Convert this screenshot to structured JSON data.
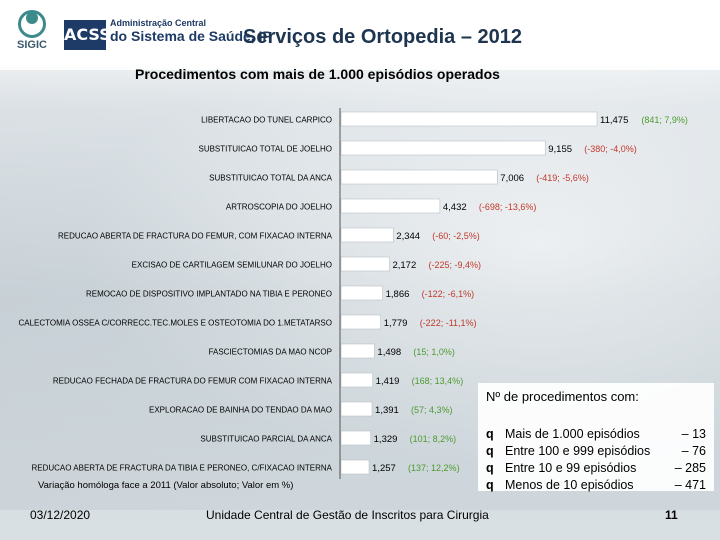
{
  "header": {
    "sigic_text": "SIGIC",
    "acss_text": "ACSS",
    "acss_line1": "Administração Central",
    "acss_line2": "do Sistema de Saúde, IP",
    "title": "Serviços de Ortopedia – 2012"
  },
  "chart_data": {
    "type": "bar",
    "orientation": "horizontal",
    "title": "Procedimentos com mais de 1.000 episódios operados",
    "categories": [
      "LIBERTACAO DO TUNEL CARPICO",
      "SUBSTITUICAO TOTAL DE JOELHO",
      "SUBSTITUICAO TOTAL DA ANCA",
      "ARTROSCOPIA DO JOELHO",
      "REDUCAO ABERTA DE FRACTURA DO FEMUR, COM FIXACAO INTERNA",
      "EXCISAO DE CARTILAGEM SEMILUNAR DO JOELHO",
      "REMOCAO DE DISPOSITIVO IMPLANTADO NA TIBIA E PERONEO",
      "CALECTOMIA OSSEA C/CORRECC.TEC.MOLES E OSTEOTOMIA DO 1.METATARSO",
      "FASCIECTOMIAS DA MAO NCOP",
      "REDUCAO FECHADA DE FRACTURA DO FEMUR COM FIXACAO INTERNA",
      "EXPLORACAO DE BAINHA DO TENDAO DA MAO",
      "SUBSTITUICAO PARCIAL DA ANCA",
      "REDUCAO ABERTA DE FRACTURA DA TIBIA E PERONEO, C/FIXACAO INTERNA"
    ],
    "values": [
      11475,
      9155,
      7006,
      4432,
      2344,
      2172,
      1866,
      1779,
      1498,
      1419,
      1391,
      1329,
      1257
    ],
    "value_labels": [
      "11,475",
      "9,155",
      "7,006",
      "4,432",
      "2,344",
      "2,172",
      "1,866",
      "1,779",
      "1,498",
      "1,419",
      "1,391",
      "1,329",
      "1,257"
    ],
    "variation_labels": [
      "(841; 7,9%)",
      "(-380; -4,0%)",
      "(-419; -5,6%)",
      "(-698; -13,6%)",
      "(-60; -2,5%)",
      "(-225; -9,4%)",
      "(-122; -6,1%)",
      "(-222; -11,1%)",
      "(15; 1,0%)",
      "(168; 13,4%)",
      "(57; 4,3%)",
      "(101; 8,2%)",
      "(137; 12,2%)"
    ],
    "variation_abs": [
      841,
      -380,
      -419,
      -698,
      -60,
      -225,
      -122,
      -222,
      15,
      168,
      57,
      101,
      137
    ],
    "variation_pct": [
      7.9,
      -4.0,
      -5.6,
      -13.6,
      -2.5,
      -9.4,
      -6.1,
      -11.1,
      1.0,
      13.4,
      4.3,
      8.2,
      12.2
    ],
    "positive_color": "#4e9a2f",
    "negative_color": "#c0392b",
    "bar_color": "#ffffff",
    "xlim": [
      0,
      11475
    ],
    "grid": false,
    "note": "Variação homóloga face a 2011 (Valor absoluto; Valor em %)"
  },
  "legend": {
    "title": "Nº de procedimentos com:",
    "items": [
      {
        "label": "Mais de 1.000 episódios",
        "count": "– 13"
      },
      {
        "label": "Entre 100 e 999 episódios",
        "count": "– 76"
      },
      {
        "label": "Entre 10 e 99 episódios",
        "count": "– 285"
      },
      {
        "label": "Menos de 10 episódios",
        "count": "– 471"
      }
    ],
    "bullet": "q"
  },
  "footer": {
    "date": "03/12/2020",
    "organization": "Unidade Central de Gestão de Inscritos para Cirurgia",
    "page": "11"
  }
}
